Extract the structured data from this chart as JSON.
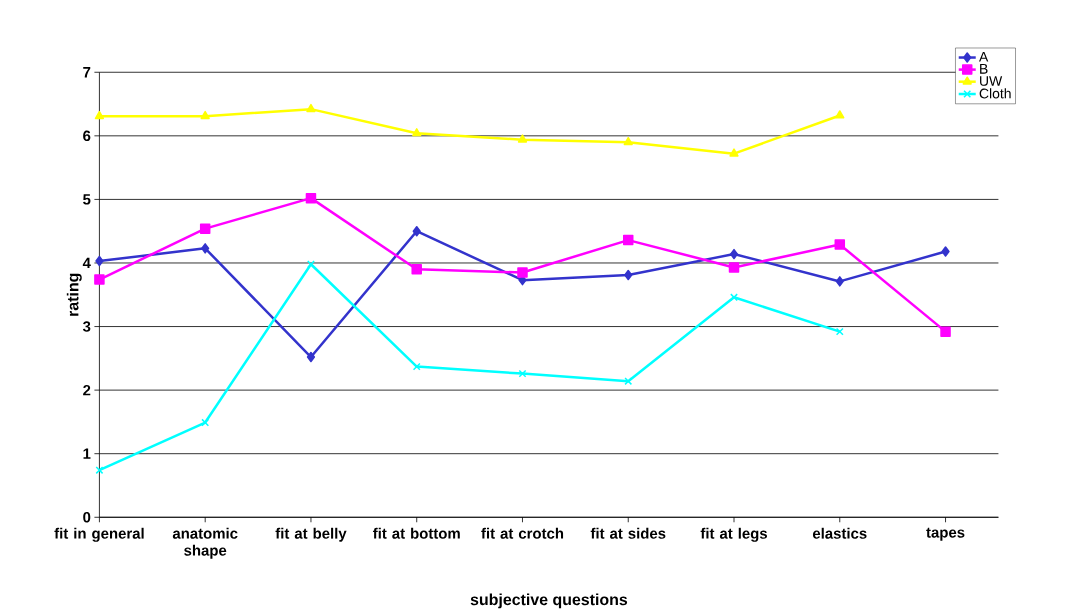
{
  "chart_data": {
    "type": "line",
    "xlabel": "subjective questions",
    "ylabel": "rating",
    "categories": [
      "fit in general",
      "anatomic shape",
      "fit at belly",
      "fit at bottom",
      "fit at crotch",
      "fit at sides",
      "fit at legs",
      "elastics",
      "tapes"
    ],
    "ylim": [
      0,
      7
    ],
    "yticks": [
      0,
      1,
      2,
      3,
      4,
      5,
      6,
      7
    ],
    "grid": "y",
    "legend": "top right",
    "line_style": "solid",
    "series": [
      {
        "name": "A",
        "color": "#3333cc",
        "marker": "diamond",
        "values": [
          4.03,
          4.23,
          2.52,
          4.5,
          3.73,
          3.81,
          4.14,
          3.71,
          4.18
        ]
      },
      {
        "name": "B",
        "color": "#ff00ff",
        "marker": "square",
        "values": [
          3.74,
          4.54,
          5.02,
          3.9,
          3.85,
          4.36,
          3.93,
          4.29,
          2.92
        ]
      },
      {
        "name": "UW",
        "color": "#ffff00",
        "marker": "triangle",
        "values": [
          6.31,
          6.31,
          6.42,
          6.04,
          5.94,
          5.9,
          5.72,
          6.32,
          null
        ]
      },
      {
        "name": "Cloth",
        "color": "#00ffff",
        "marker": "cross",
        "values": [
          0.74,
          1.49,
          3.98,
          2.37,
          2.26,
          2.14,
          3.46,
          2.92,
          null
        ]
      }
    ]
  }
}
